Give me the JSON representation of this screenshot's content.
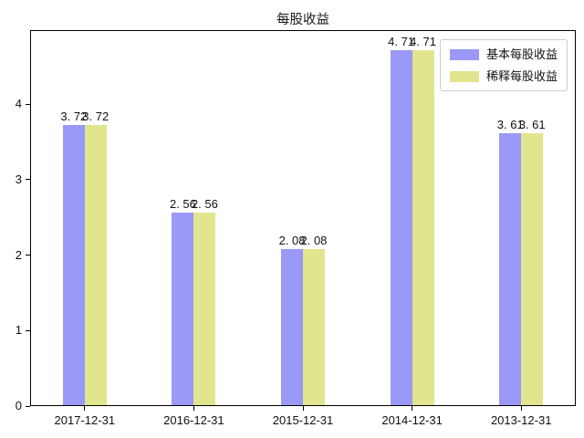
{
  "chart_data": {
    "type": "bar",
    "title": "每股收益",
    "categories": [
      "2017-12-31",
      "2016-12-31",
      "2015-12-31",
      "2014-12-31",
      "2013-12-31"
    ],
    "series": [
      {
        "name": "基本每股收益",
        "values": [
          3.72,
          2.56,
          2.08,
          4.71,
          3.61
        ],
        "labels": [
          "3. 72",
          "2. 56",
          "2. 08",
          "4. 71",
          "3. 61"
        ],
        "color": "#9a99f7"
      },
      {
        "name": "稀释每股收益",
        "values": [
          3.72,
          2.56,
          2.08,
          4.71,
          3.61
        ],
        "labels": [
          "3. 72",
          "2. 56",
          "2. 08",
          "4. 71",
          "3. 61"
        ],
        "color": "#e1e58d"
      }
    ],
    "xlabel": "",
    "ylabel": "",
    "ylim": [
      0,
      4.98
    ],
    "yticks": [
      0,
      1,
      2,
      3,
      4
    ],
    "grid": false,
    "legend_position": "upper right",
    "bar_width_fraction": 0.2,
    "frame_color": "#000000",
    "background_color": "#ffffff"
  }
}
